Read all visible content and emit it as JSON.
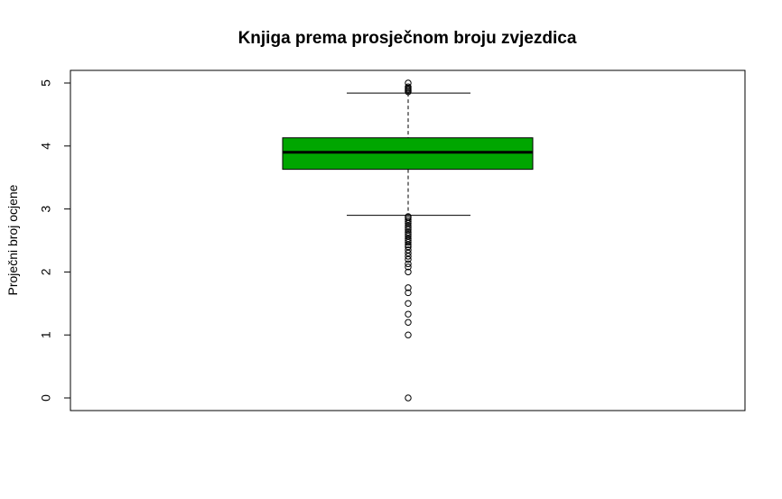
{
  "chart_data": {
    "type": "boxplot",
    "title": "Knjiga prema prosječnom broju zvjezdica",
    "xlabel": "",
    "ylabel": "Proječni broj ocjene",
    "ylim": [
      -0.2,
      5.2
    ],
    "yticks": [
      "0",
      "1",
      "2",
      "3",
      "4",
      "5"
    ],
    "box_color": "#00A600",
    "grid": false,
    "box": {
      "whisker_low": 2.9,
      "q1": 3.63,
      "median": 3.9,
      "q3": 4.13,
      "whisker_high": 4.84
    },
    "outliers": [
      0,
      1.0,
      1.2,
      1.33,
      1.5,
      1.67,
      1.75,
      2.0,
      2.08,
      2.13,
      2.2,
      2.25,
      2.3,
      2.35,
      2.4,
      2.43,
      2.47,
      2.5,
      2.53,
      2.57,
      2.6,
      2.63,
      2.67,
      2.7,
      2.73,
      2.77,
      2.8,
      2.83,
      2.86,
      2.88,
      4.86,
      4.88,
      4.9,
      4.92,
      4.94,
      5.0
    ]
  }
}
